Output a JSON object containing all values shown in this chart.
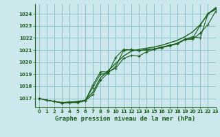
{
  "title": "Graphe pression niveau de la mer (hPa)",
  "background_color": "#cce8ec",
  "grid_color": "#8fbfc8",
  "line_color": "#1a5c1a",
  "xlim": [
    -0.5,
    23
  ],
  "ylim": [
    1016.3,
    1024.8
  ],
  "yticks": [
    1017,
    1018,
    1019,
    1020,
    1021,
    1022,
    1023,
    1024
  ],
  "xticks": [
    0,
    1,
    2,
    3,
    4,
    5,
    6,
    7,
    8,
    9,
    10,
    11,
    12,
    13,
    14,
    15,
    16,
    17,
    18,
    19,
    20,
    21,
    22,
    23
  ],
  "series_smooth": [
    1017.0,
    1016.85,
    1016.75,
    1016.65,
    1016.7,
    1016.75,
    1016.85,
    1017.5,
    1018.7,
    1019.3,
    1019.9,
    1020.5,
    1020.9,
    1021.05,
    1021.15,
    1021.25,
    1021.4,
    1021.6,
    1021.8,
    1022.1,
    1022.5,
    1023.1,
    1024.0,
    1024.5
  ],
  "series_dot1": [
    1017.0,
    1016.85,
    1016.75,
    1016.65,
    1016.65,
    1016.7,
    1016.8,
    1017.3,
    1018.5,
    1019.1,
    1020.4,
    1021.05,
    1021.0,
    1020.95,
    1021.0,
    1021.1,
    1021.25,
    1021.4,
    1021.55,
    1021.9,
    1022.1,
    1022.0,
    1024.0,
    1024.35
  ],
  "series_dot2": [
    1017.0,
    1016.85,
    1016.75,
    1016.6,
    1016.65,
    1016.65,
    1016.8,
    1017.9,
    1019.0,
    1019.1,
    1019.65,
    1020.95,
    1021.05,
    1020.95,
    1021.05,
    1021.1,
    1021.2,
    1021.4,
    1021.55,
    1021.9,
    1021.95,
    1023.05,
    1024.0,
    1024.45
  ],
  "series_dot3": [
    1017.0,
    1016.85,
    1016.75,
    1016.65,
    1016.7,
    1016.7,
    1016.8,
    1018.1,
    1019.2,
    1019.2,
    1019.5,
    1020.3,
    1020.55,
    1020.5,
    1020.85,
    1021.05,
    1021.2,
    1021.35,
    1021.5,
    1021.85,
    1021.9,
    1022.4,
    1023.1,
    1024.2
  ]
}
